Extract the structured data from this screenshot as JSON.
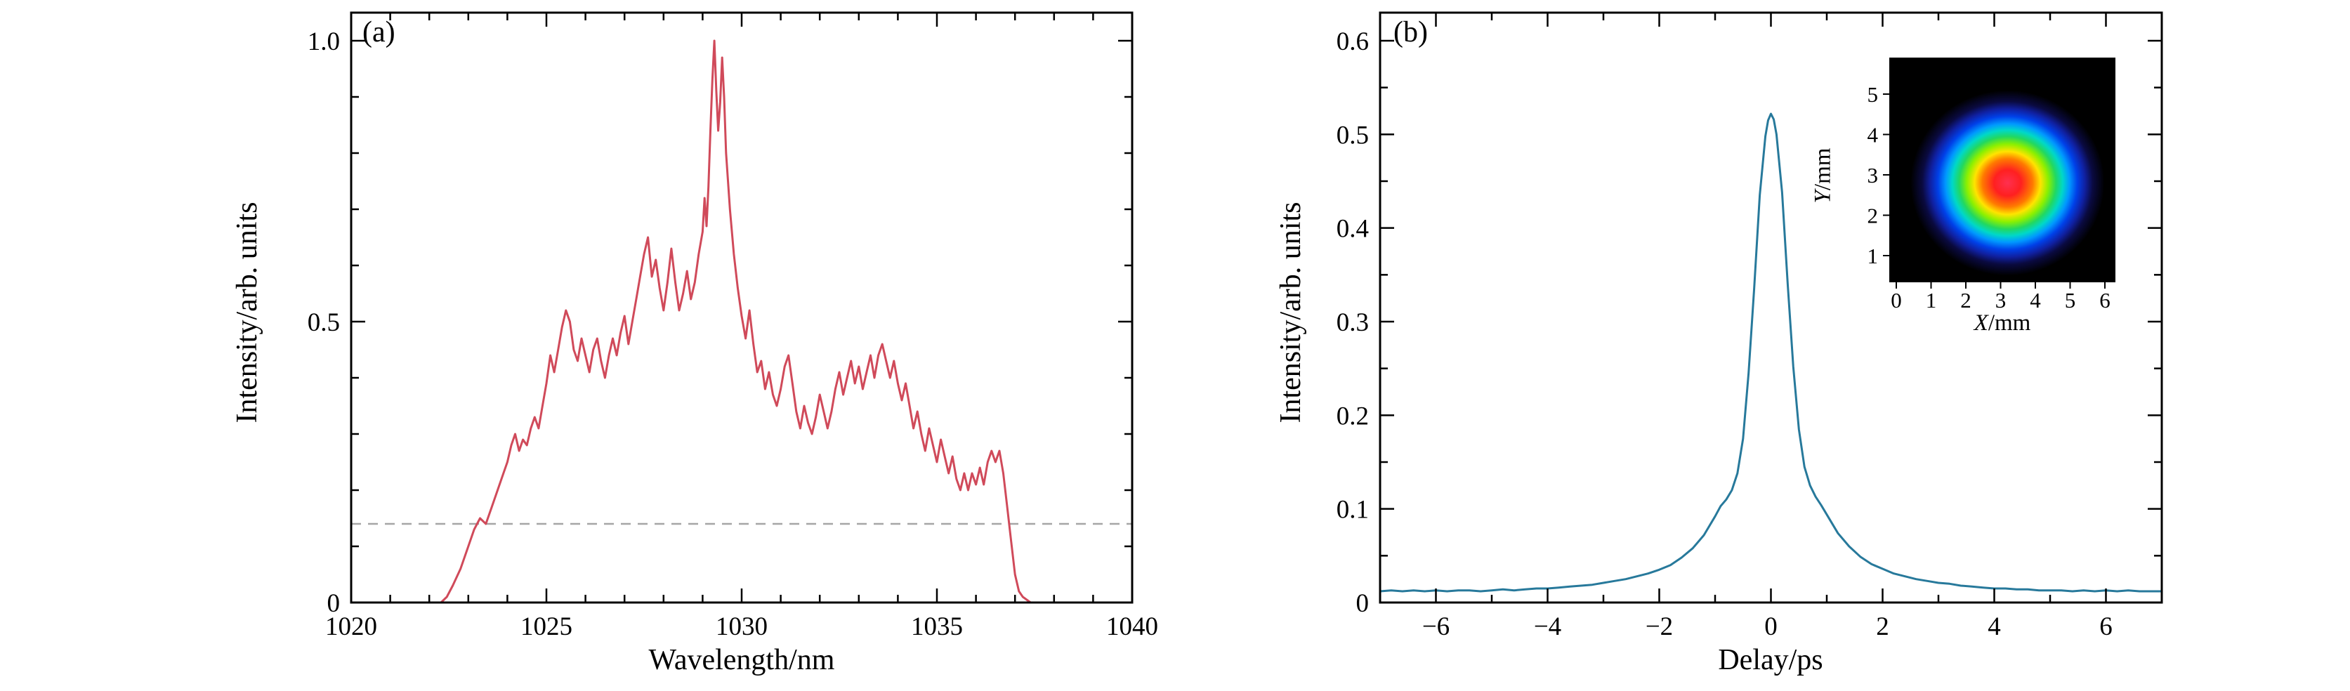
{
  "page": {
    "background": "#ffffff",
    "text_color": "#000000"
  },
  "chart_data": [
    {
      "panel_label": "(a)",
      "type": "line",
      "series_name": "spectrum-curve",
      "xlabel": "Wavelength/nm",
      "ylabel": "Intensity/arb. units",
      "xlim": [
        1020,
        1040
      ],
      "ylim": [
        0,
        1.05
      ],
      "x_major_ticks": [
        1020,
        1025,
        1030,
        1035,
        1040
      ],
      "x_tick_labels": [
        "1020",
        "1025",
        "1030",
        "1035",
        "1040"
      ],
      "x_minor_step": 1,
      "y_major_ticks": [
        0,
        0.5,
        1.0
      ],
      "y_tick_labels": [
        "0",
        "0.5",
        "1.0"
      ],
      "y_minor_step": 0.1,
      "line_color": "#d04a5a",
      "dashed_line_y": 0.14,
      "dashed_line_color": "#a6a6a6",
      "grid": false,
      "data": [
        [
          1020.0,
          0.0
        ],
        [
          1021.0,
          0.0
        ],
        [
          1022.0,
          0.0
        ],
        [
          1022.3,
          0.0
        ],
        [
          1022.45,
          0.01
        ],
        [
          1022.6,
          0.03
        ],
        [
          1022.8,
          0.06
        ],
        [
          1023.0,
          0.1
        ],
        [
          1023.15,
          0.13
        ],
        [
          1023.3,
          0.15
        ],
        [
          1023.45,
          0.14
        ],
        [
          1023.6,
          0.17
        ],
        [
          1023.75,
          0.2
        ],
        [
          1023.9,
          0.23
        ],
        [
          1024.0,
          0.25
        ],
        [
          1024.1,
          0.28
        ],
        [
          1024.2,
          0.3
        ],
        [
          1024.3,
          0.27
        ],
        [
          1024.4,
          0.29
        ],
        [
          1024.5,
          0.28
        ],
        [
          1024.6,
          0.31
        ],
        [
          1024.7,
          0.33
        ],
        [
          1024.8,
          0.31
        ],
        [
          1024.9,
          0.35
        ],
        [
          1025.0,
          0.39
        ],
        [
          1025.1,
          0.44
        ],
        [
          1025.2,
          0.41
        ],
        [
          1025.3,
          0.45
        ],
        [
          1025.4,
          0.49
        ],
        [
          1025.5,
          0.52
        ],
        [
          1025.6,
          0.5
        ],
        [
          1025.7,
          0.45
        ],
        [
          1025.8,
          0.43
        ],
        [
          1025.9,
          0.47
        ],
        [
          1026.0,
          0.44
        ],
        [
          1026.1,
          0.41
        ],
        [
          1026.2,
          0.45
        ],
        [
          1026.3,
          0.47
        ],
        [
          1026.4,
          0.43
        ],
        [
          1026.5,
          0.4
        ],
        [
          1026.6,
          0.44
        ],
        [
          1026.7,
          0.47
        ],
        [
          1026.8,
          0.44
        ],
        [
          1026.9,
          0.48
        ],
        [
          1027.0,
          0.51
        ],
        [
          1027.1,
          0.46
        ],
        [
          1027.2,
          0.5
        ],
        [
          1027.3,
          0.54
        ],
        [
          1027.4,
          0.58
        ],
        [
          1027.5,
          0.62
        ],
        [
          1027.6,
          0.65
        ],
        [
          1027.7,
          0.58
        ],
        [
          1027.8,
          0.61
        ],
        [
          1027.9,
          0.56
        ],
        [
          1028.0,
          0.52
        ],
        [
          1028.1,
          0.57
        ],
        [
          1028.2,
          0.63
        ],
        [
          1028.3,
          0.57
        ],
        [
          1028.4,
          0.52
        ],
        [
          1028.5,
          0.55
        ],
        [
          1028.6,
          0.59
        ],
        [
          1028.7,
          0.54
        ],
        [
          1028.8,
          0.57
        ],
        [
          1028.9,
          0.62
        ],
        [
          1029.0,
          0.66
        ],
        [
          1029.05,
          0.72
        ],
        [
          1029.1,
          0.67
        ],
        [
          1029.15,
          0.74
        ],
        [
          1029.2,
          0.84
        ],
        [
          1029.25,
          0.93
        ],
        [
          1029.3,
          1.0
        ],
        [
          1029.35,
          0.91
        ],
        [
          1029.4,
          0.84
        ],
        [
          1029.45,
          0.89
        ],
        [
          1029.5,
          0.97
        ],
        [
          1029.55,
          0.9
        ],
        [
          1029.6,
          0.8
        ],
        [
          1029.7,
          0.7
        ],
        [
          1029.8,
          0.62
        ],
        [
          1029.9,
          0.56
        ],
        [
          1030.0,
          0.51
        ],
        [
          1030.1,
          0.47
        ],
        [
          1030.2,
          0.52
        ],
        [
          1030.3,
          0.46
        ],
        [
          1030.4,
          0.41
        ],
        [
          1030.5,
          0.43
        ],
        [
          1030.6,
          0.38
        ],
        [
          1030.7,
          0.41
        ],
        [
          1030.8,
          0.37
        ],
        [
          1030.9,
          0.35
        ],
        [
          1031.0,
          0.38
        ],
        [
          1031.1,
          0.42
        ],
        [
          1031.2,
          0.44
        ],
        [
          1031.3,
          0.39
        ],
        [
          1031.4,
          0.34
        ],
        [
          1031.5,
          0.31
        ],
        [
          1031.6,
          0.35
        ],
        [
          1031.7,
          0.32
        ],
        [
          1031.8,
          0.3
        ],
        [
          1031.9,
          0.33
        ],
        [
          1032.0,
          0.37
        ],
        [
          1032.1,
          0.34
        ],
        [
          1032.2,
          0.31
        ],
        [
          1032.3,
          0.34
        ],
        [
          1032.4,
          0.38
        ],
        [
          1032.5,
          0.41
        ],
        [
          1032.6,
          0.37
        ],
        [
          1032.7,
          0.4
        ],
        [
          1032.8,
          0.43
        ],
        [
          1032.9,
          0.39
        ],
        [
          1033.0,
          0.42
        ],
        [
          1033.1,
          0.38
        ],
        [
          1033.2,
          0.41
        ],
        [
          1033.3,
          0.44
        ],
        [
          1033.4,
          0.4
        ],
        [
          1033.5,
          0.44
        ],
        [
          1033.6,
          0.46
        ],
        [
          1033.7,
          0.43
        ],
        [
          1033.8,
          0.4
        ],
        [
          1033.9,
          0.43
        ],
        [
          1034.0,
          0.39
        ],
        [
          1034.1,
          0.36
        ],
        [
          1034.2,
          0.39
        ],
        [
          1034.3,
          0.35
        ],
        [
          1034.4,
          0.31
        ],
        [
          1034.5,
          0.34
        ],
        [
          1034.6,
          0.3
        ],
        [
          1034.7,
          0.27
        ],
        [
          1034.8,
          0.31
        ],
        [
          1034.9,
          0.28
        ],
        [
          1035.0,
          0.25
        ],
        [
          1035.1,
          0.29
        ],
        [
          1035.2,
          0.26
        ],
        [
          1035.3,
          0.23
        ],
        [
          1035.4,
          0.26
        ],
        [
          1035.5,
          0.22
        ],
        [
          1035.6,
          0.2
        ],
        [
          1035.7,
          0.23
        ],
        [
          1035.8,
          0.2
        ],
        [
          1035.9,
          0.23
        ],
        [
          1036.0,
          0.21
        ],
        [
          1036.1,
          0.24
        ],
        [
          1036.2,
          0.21
        ],
        [
          1036.3,
          0.25
        ],
        [
          1036.4,
          0.27
        ],
        [
          1036.5,
          0.25
        ],
        [
          1036.6,
          0.27
        ],
        [
          1036.7,
          0.23
        ],
        [
          1036.8,
          0.17
        ],
        [
          1036.9,
          0.11
        ],
        [
          1037.0,
          0.05
        ],
        [
          1037.1,
          0.02
        ],
        [
          1037.2,
          0.01
        ],
        [
          1037.4,
          0.0
        ],
        [
          1038.0,
          0.0
        ],
        [
          1039.0,
          0.0
        ],
        [
          1040.0,
          0.0
        ]
      ]
    },
    {
      "panel_label": "(b)",
      "type": "line",
      "series_name": "autocorrelation-curve",
      "xlabel": "Delay/ps",
      "ylabel": "Intensity/arb. units",
      "xlim": [
        -7,
        7
      ],
      "ylim": [
        0,
        0.63
      ],
      "x_major_ticks": [
        -6,
        -4,
        -2,
        0,
        2,
        4,
        6
      ],
      "x_tick_labels": [
        "−6",
        "−4",
        "−2",
        "0",
        "2",
        "4",
        "6"
      ],
      "x_minor_step": 1,
      "y_major_ticks": [
        0,
        0.1,
        0.2,
        0.3,
        0.4,
        0.5,
        0.6
      ],
      "y_tick_labels": [
        "0",
        "0.1",
        "0.2",
        "0.3",
        "0.4",
        "0.5",
        "0.6"
      ],
      "y_minor_step": 0.05,
      "line_color": "#27799b",
      "grid": false,
      "data": [
        [
          -7.0,
          0.012
        ],
        [
          -6.8,
          0.013
        ],
        [
          -6.6,
          0.012
        ],
        [
          -6.4,
          0.013
        ],
        [
          -6.2,
          0.012
        ],
        [
          -6.0,
          0.013
        ],
        [
          -5.8,
          0.012
        ],
        [
          -5.6,
          0.013
        ],
        [
          -5.4,
          0.013
        ],
        [
          -5.2,
          0.012
        ],
        [
          -5.0,
          0.013
        ],
        [
          -4.8,
          0.014
        ],
        [
          -4.6,
          0.013
        ],
        [
          -4.4,
          0.014
        ],
        [
          -4.2,
          0.015
        ],
        [
          -4.0,
          0.015
        ],
        [
          -3.8,
          0.016
        ],
        [
          -3.6,
          0.017
        ],
        [
          -3.4,
          0.018
        ],
        [
          -3.2,
          0.019
        ],
        [
          -3.0,
          0.021
        ],
        [
          -2.8,
          0.023
        ],
        [
          -2.6,
          0.025
        ],
        [
          -2.4,
          0.028
        ],
        [
          -2.2,
          0.031
        ],
        [
          -2.0,
          0.035
        ],
        [
          -1.8,
          0.04
        ],
        [
          -1.6,
          0.048
        ],
        [
          -1.4,
          0.058
        ],
        [
          -1.2,
          0.072
        ],
        [
          -1.0,
          0.092
        ],
        [
          -0.9,
          0.103
        ],
        [
          -0.8,
          0.11
        ],
        [
          -0.7,
          0.12
        ],
        [
          -0.6,
          0.138
        ],
        [
          -0.5,
          0.175
        ],
        [
          -0.4,
          0.245
        ],
        [
          -0.3,
          0.335
        ],
        [
          -0.2,
          0.435
        ],
        [
          -0.1,
          0.498
        ],
        [
          -0.05,
          0.515
        ],
        [
          0.0,
          0.522
        ],
        [
          0.05,
          0.516
        ],
        [
          0.1,
          0.5
        ],
        [
          0.2,
          0.438
        ],
        [
          0.3,
          0.34
        ],
        [
          0.4,
          0.252
        ],
        [
          0.5,
          0.185
        ],
        [
          0.6,
          0.145
        ],
        [
          0.7,
          0.125
        ],
        [
          0.8,
          0.113
        ],
        [
          0.9,
          0.104
        ],
        [
          1.0,
          0.094
        ],
        [
          1.2,
          0.074
        ],
        [
          1.4,
          0.06
        ],
        [
          1.6,
          0.049
        ],
        [
          1.8,
          0.041
        ],
        [
          2.0,
          0.036
        ],
        [
          2.2,
          0.031
        ],
        [
          2.4,
          0.028
        ],
        [
          2.6,
          0.025
        ],
        [
          2.8,
          0.023
        ],
        [
          3.0,
          0.021
        ],
        [
          3.2,
          0.02
        ],
        [
          3.4,
          0.018
        ],
        [
          3.6,
          0.017
        ],
        [
          3.8,
          0.016
        ],
        [
          4.0,
          0.015
        ],
        [
          4.2,
          0.015
        ],
        [
          4.4,
          0.014
        ],
        [
          4.6,
          0.014
        ],
        [
          4.8,
          0.013
        ],
        [
          5.0,
          0.013
        ],
        [
          5.2,
          0.013
        ],
        [
          5.4,
          0.012
        ],
        [
          5.6,
          0.013
        ],
        [
          5.8,
          0.012
        ],
        [
          6.0,
          0.013
        ],
        [
          6.2,
          0.012
        ],
        [
          6.4,
          0.013
        ],
        [
          6.6,
          0.012
        ],
        [
          6.8,
          0.012
        ],
        [
          7.0,
          0.012
        ]
      ],
      "inset": {
        "type": "beam-profile-image",
        "xlabel_var": "X",
        "xlabel_unit": "/mm",
        "ylabel_var": "Y",
        "ylabel_unit": "/mm",
        "x_ticks": [
          0,
          1,
          2,
          3,
          4,
          5,
          6
        ],
        "x_tick_labels": [
          "0",
          "1",
          "2",
          "3",
          "4",
          "5",
          "6"
        ],
        "y_ticks": [
          1,
          2,
          3,
          4,
          5
        ],
        "y_tick_labels": [
          "1",
          "2",
          "3",
          "4",
          "5"
        ],
        "beam_center_mm": [
          3.2,
          2.8
        ],
        "background_color": "#000000",
        "colormap": [
          {
            "offset": "0%",
            "color": "#ff3050"
          },
          {
            "offset": "14%",
            "color": "#ff2020"
          },
          {
            "offset": "26%",
            "color": "#ff7a00"
          },
          {
            "offset": "34%",
            "color": "#ffe400"
          },
          {
            "offset": "42%",
            "color": "#8cf000"
          },
          {
            "offset": "50%",
            "color": "#22d860"
          },
          {
            "offset": "57%",
            "color": "#00d8c8"
          },
          {
            "offset": "64%",
            "color": "#0098ff"
          },
          {
            "offset": "72%",
            "color": "#0040e8"
          },
          {
            "offset": "80%",
            "color": "#1020a0"
          },
          {
            "offset": "88%",
            "color": "#0a0a40"
          },
          {
            "offset": "100%",
            "color": "#000000"
          }
        ]
      }
    }
  ]
}
